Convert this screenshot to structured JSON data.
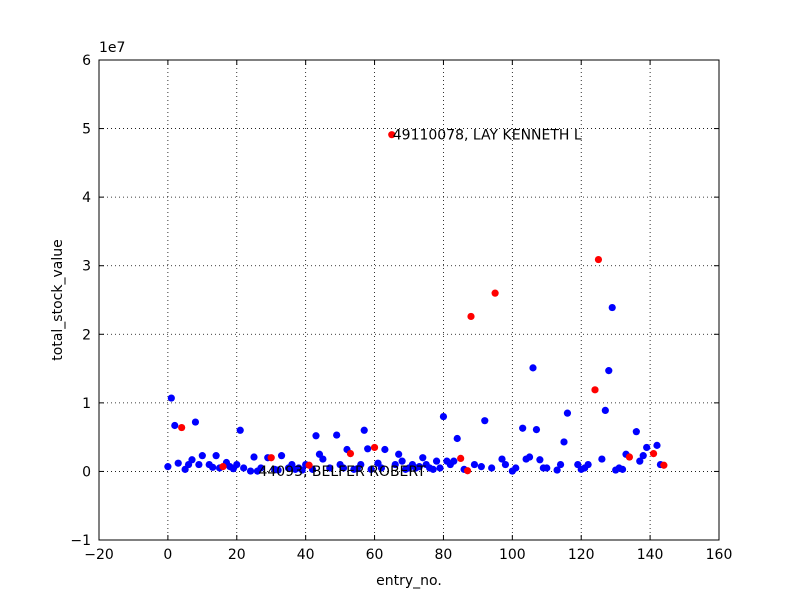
{
  "chart_data": {
    "type": "scatter",
    "x_label": "entry_no.",
    "y_label": "total_stock_value",
    "y_offset_label": "1e7",
    "xlim": [
      -20,
      160
    ],
    "ylim": [
      -10000000,
      60000000
    ],
    "xticks": [
      {
        "value": -20,
        "label": "−20"
      },
      0,
      20,
      40,
      60,
      80,
      100,
      120,
      140,
      160
    ],
    "yticks": [
      {
        "value": -10000000,
        "label": "−1"
      },
      {
        "value": 0,
        "label": "0"
      },
      {
        "value": 10000000,
        "label": "1"
      },
      {
        "value": 20000000,
        "label": "2"
      },
      {
        "value": 30000000,
        "label": "3"
      },
      {
        "value": 40000000,
        "label": "4"
      },
      {
        "value": 50000000,
        "label": "5"
      },
      {
        "value": 60000000,
        "label": "6"
      }
    ],
    "grid": true,
    "series": [
      {
        "color": "#0000ff",
        "x": [
          0,
          1,
          2,
          3,
          5,
          6,
          7,
          8,
          9,
          10,
          12,
          13,
          14,
          15,
          17,
          18,
          19,
          20,
          21,
          22,
          24,
          25,
          26,
          27,
          29,
          31,
          32,
          33,
          35,
          36,
          37,
          38,
          39,
          40,
          42,
          43,
          44,
          45,
          47,
          49,
          50,
          51,
          52,
          54,
          55,
          56,
          57,
          58,
          59,
          61,
          62,
          63,
          66,
          67,
          68,
          69,
          70,
          71,
          72,
          73,
          74,
          75,
          76,
          77,
          78,
          79,
          80,
          81,
          82,
          83,
          84,
          86,
          89,
          91,
          92,
          94,
          97,
          98,
          100,
          101,
          103,
          104,
          105,
          106,
          107,
          108,
          109,
          110,
          113,
          114,
          115,
          116,
          119,
          120,
          121,
          122,
          126,
          127,
          128,
          129,
          130,
          131,
          132,
          133,
          136,
          137,
          138,
          139,
          142,
          143
        ],
        "values": [
          700000,
          10700000,
          6700000,
          1200000,
          300000,
          1000000,
          1700000,
          7200000,
          1000000,
          2300000,
          1000000,
          600000,
          2300000,
          500000,
          1300000,
          700000,
          400000,
          1000000,
          6000000,
          500000,
          50000,
          2100000,
          44093,
          500000,
          2000000,
          300000,
          200000,
          2300000,
          500000,
          1000000,
          300000,
          500000,
          200000,
          1000000,
          300000,
          5200000,
          2500000,
          1800000,
          500000,
          5300000,
          1000000,
          500000,
          3200000,
          300000,
          400000,
          1000000,
          6000000,
          3300000,
          300000,
          1200000,
          500000,
          3200000,
          1000000,
          2500000,
          1500000,
          300000,
          500000,
          1000000,
          500000,
          700000,
          2000000,
          1000000,
          500000,
          300000,
          1500000,
          500000,
          8000000,
          1500000,
          1000000,
          1500000,
          4800000,
          300000,
          1000000,
          700000,
          7400000,
          500000,
          1800000,
          1000000,
          50000,
          500000,
          6300000,
          1800000,
          2100000,
          15100000,
          6100000,
          1700000,
          500000,
          500000,
          200000,
          1000000,
          4300000,
          8500000,
          1000000,
          300000,
          500000,
          1000000,
          1800000,
          8900000,
          14700000,
          23900000,
          200000,
          500000,
          300000,
          2500000,
          5800000,
          1500000,
          2300000,
          3500000,
          3800000,
          1000000
        ]
      },
      {
        "color": "#ff0000",
        "x": [
          4,
          16,
          30,
          41,
          53,
          60,
          65,
          85,
          87,
          88,
          95,
          124,
          125,
          134,
          141,
          144
        ],
        "values": [
          6400000,
          700000,
          2000000,
          900000,
          2600000,
          3500000,
          49110078,
          1900000,
          100000,
          22600000,
          26000000,
          11900000,
          30900000,
          2100000,
          2600000,
          900000
        ]
      }
    ],
    "annotations": [
      {
        "text": "49110078, LAY KENNETH L",
        "x": 65,
        "y": 49110078
      },
      {
        "text": "44093, BELFER ROBERT",
        "x": 26,
        "y": 44093
      }
    ]
  }
}
